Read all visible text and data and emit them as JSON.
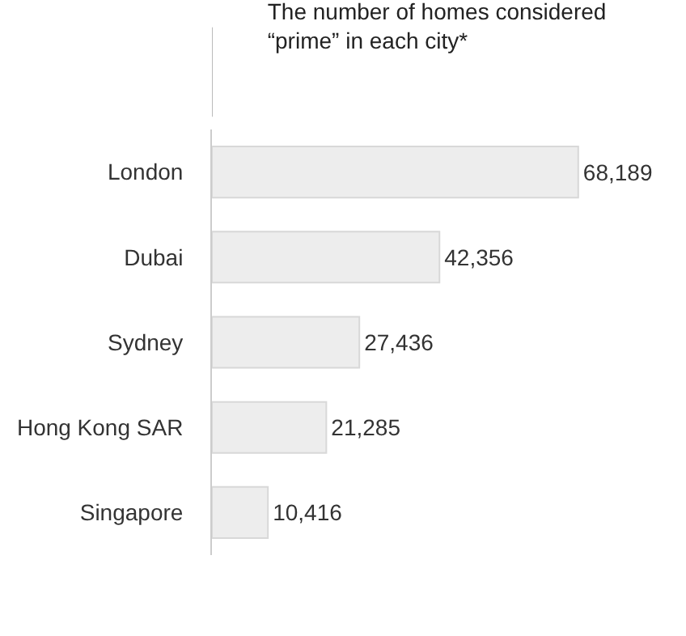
{
  "chart_data": {
    "type": "bar",
    "orientation": "horizontal",
    "tick_labels": "y",
    "data_labels": true,
    "title": "The number of homes considered\n“prime” in each city*",
    "categories": [
      "London",
      "Dubai",
      "Sydney",
      "Hong Kong SAR",
      "Singapore"
    ],
    "values": [
      68189,
      42356,
      27436,
      21285,
      10416
    ],
    "value_labels": [
      "68,189",
      "42,356",
      "27,436",
      "21,285",
      "10,416"
    ],
    "color": "#ededed"
  }
}
